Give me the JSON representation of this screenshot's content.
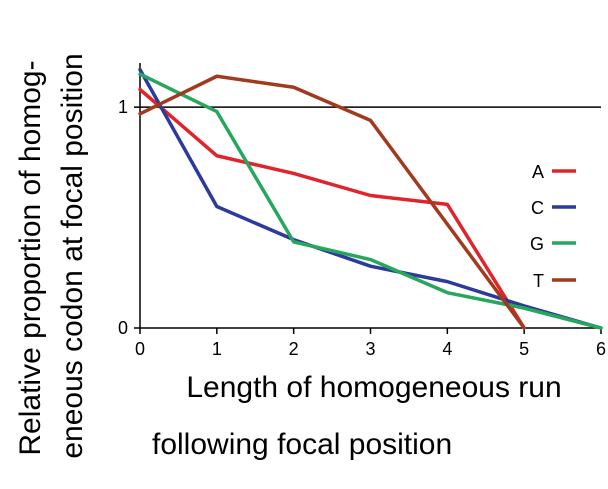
{
  "chart_data": {
    "type": "line",
    "title": "",
    "xlabel_lines": [
      "Length of homogeneous run",
      "following focal position"
    ],
    "ylabel_lines": [
      "Relative proportion of homog-",
      "eneous codon at focal position"
    ],
    "xlim": [
      0,
      6
    ],
    "ylim": [
      0,
      1.2
    ],
    "x_ticks": [
      0,
      1,
      2,
      3,
      4,
      5,
      6
    ],
    "y_ticks": [
      0,
      1
    ],
    "reference_line": 1,
    "grid": false,
    "legend_position": "right",
    "series": [
      {
        "name": "A",
        "color": "#e0242b",
        "x": [
          0,
          1,
          2,
          3,
          4,
          5
        ],
        "y": [
          1.08,
          0.78,
          0.7,
          0.6,
          0.56,
          0
        ]
      },
      {
        "name": "C",
        "color": "#2b3a9b",
        "x": [
          0,
          1,
          2,
          3,
          4,
          5,
          6
        ],
        "y": [
          1.17,
          0.55,
          0.4,
          0.28,
          0.21,
          0.1,
          0
        ]
      },
      {
        "name": "G",
        "color": "#27a65d",
        "x": [
          0,
          1,
          2,
          3,
          4,
          5,
          6
        ],
        "y": [
          1.15,
          0.98,
          0.39,
          0.31,
          0.16,
          0.09,
          0
        ]
      },
      {
        "name": "T",
        "color": "#a23a1e",
        "x": [
          0,
          1,
          2,
          3,
          5
        ],
        "y": [
          0.97,
          1.14,
          1.09,
          0.94,
          0
        ]
      }
    ]
  }
}
